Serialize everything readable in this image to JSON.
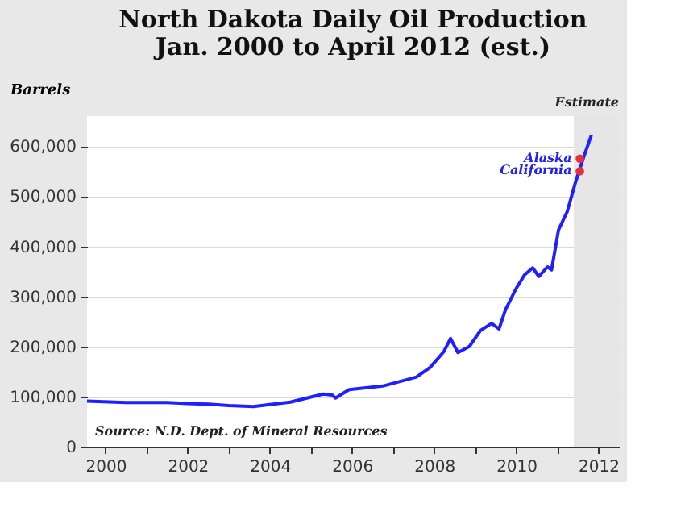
{
  "chart_data": {
    "type": "line",
    "title": "North Dakota Daily Oil Production\nJan. 2000 to April 2012 (est.)",
    "ylabel": "Barrels",
    "x": [
      1999.55,
      2000.5,
      2001.5,
      2002.0,
      2002.5,
      2003.0,
      2003.6,
      2004.0,
      2004.5,
      2004.9,
      2005.3,
      2005.52,
      2005.6,
      2005.93,
      2006.75,
      2007.57,
      2007.9,
      2008.24,
      2008.4,
      2008.58,
      2008.86,
      2009.13,
      2009.4,
      2009.58,
      2009.74,
      2010.0,
      2010.2,
      2010.4,
      2010.55,
      2010.76,
      2010.86,
      2011.03,
      2011.24,
      2011.44,
      2011.65,
      2011.83
    ],
    "series": [
      {
        "color": "#1f1fff",
        "values": [
          91000,
          88000,
          88000,
          86000,
          85000,
          82000,
          80000,
          84000,
          89000,
          97000,
          105000,
          103000,
          97000,
          114000,
          121000,
          139000,
          158000,
          190000,
          216000,
          188000,
          200000,
          232000,
          246000,
          235000,
          274000,
          316000,
          343000,
          357000,
          340000,
          359000,
          353000,
          433000,
          469000,
          527000,
          580000,
          622000
        ]
      },
      {
        "type": "scatter",
        "marker": "circle",
        "color": "#e8303a",
        "x": [
          2011.55,
          2011.55
        ],
        "values": [
          575000,
          550000
        ]
      }
    ],
    "xlim": [
      1999.55,
      2012.5
    ],
    "ylim": [
      0,
      660000
    ],
    "xticks": [
      2000,
      {
        "value": 2001,
        "label": null
      },
      2002,
      {
        "value": 2003,
        "label": null
      },
      2004,
      {
        "value": 2005,
        "label": null
      },
      2006,
      {
        "value": 2007,
        "label": null
      },
      2008,
      {
        "value": 2009,
        "label": null
      },
      2010,
      {
        "value": 2011,
        "label": null
      },
      2012
    ],
    "yticks": [
      0,
      {
        "value": 100000,
        "label": "100,000"
      },
      {
        "value": 200000,
        "label": "200,000"
      },
      {
        "value": 300000,
        "label": "300,000"
      },
      {
        "value": 400000,
        "label": "400,000"
      },
      {
        "value": 500000,
        "label": "500,000"
      },
      {
        "value": 600000,
        "label": "600,000"
      }
    ],
    "bands": [
      {
        "axis": "x",
        "from": 2011.4,
        "to": 2012.5,
        "label": "Estimate",
        "color": "#e6e6e6"
      }
    ],
    "annotations": [
      {
        "text": "Alaska",
        "x": 2011.55,
        "y": 575000
      },
      {
        "text": "California",
        "x": 2011.55,
        "y": 550000
      },
      "Source: N.D. Dept. of Mineral Resources"
    ],
    "grid": "y",
    "line_style": "solid"
  }
}
